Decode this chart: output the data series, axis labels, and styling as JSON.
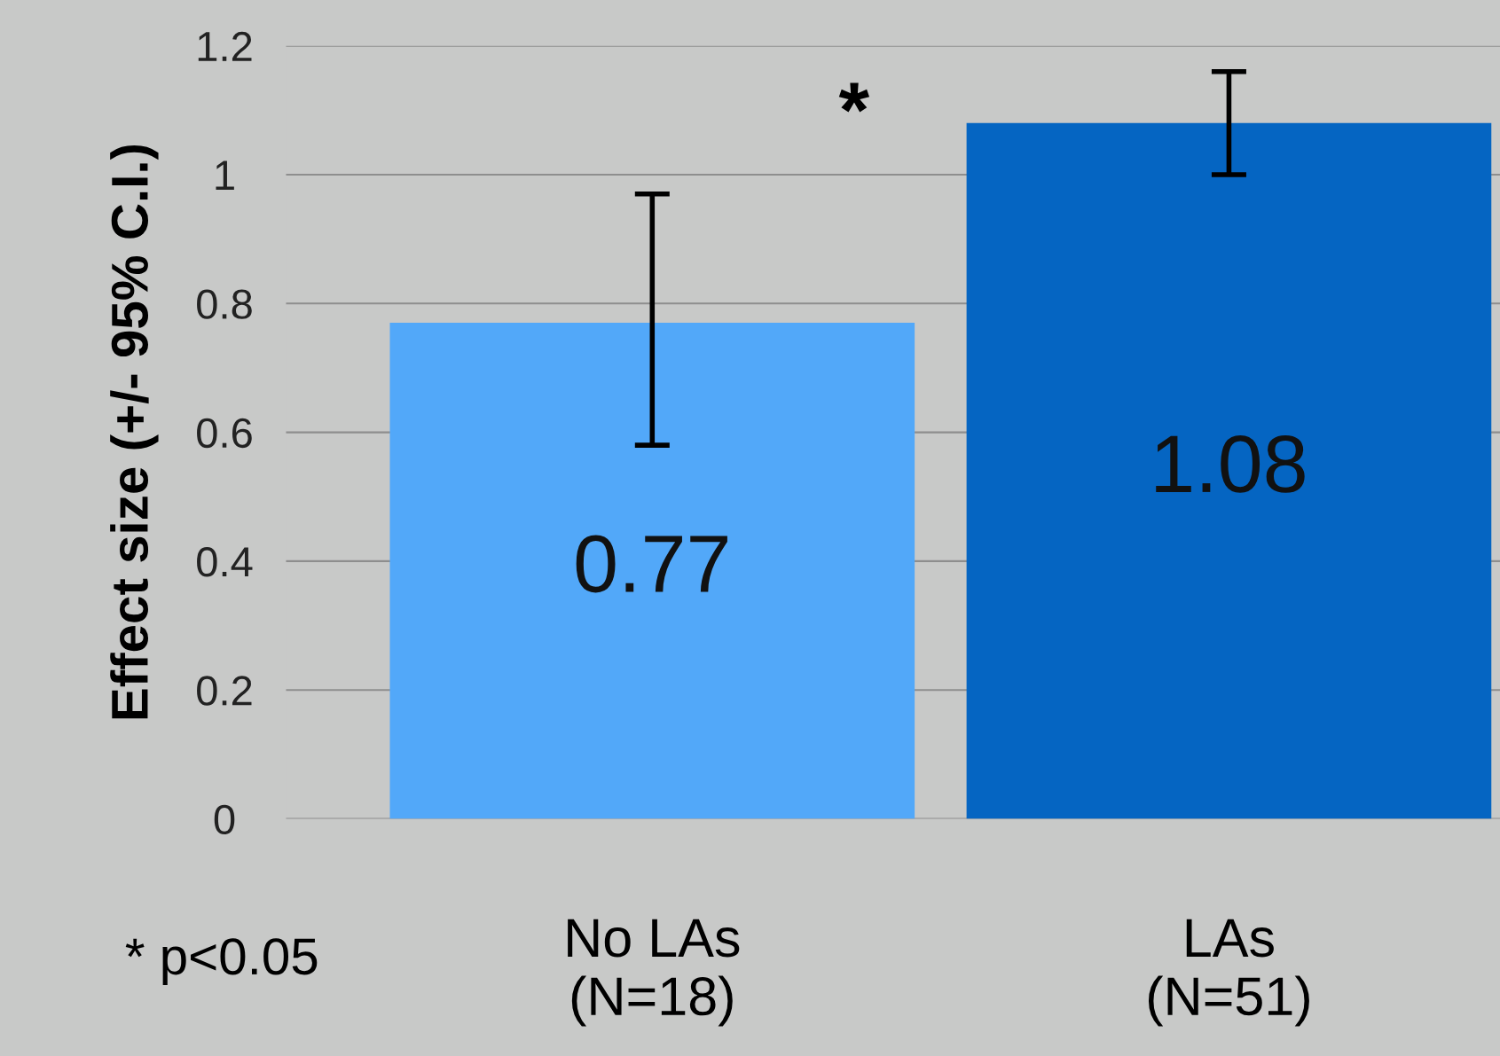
{
  "chart_data": {
    "type": "bar",
    "ylabel": "Effect size (+/- 95% C.I.)",
    "categories": [
      "No LAs\n(N=18)",
      "LAs\n(N=51)"
    ],
    "values": [
      0.77,
      1.08
    ],
    "colors": [
      "#52a8f9",
      "#0565c2"
    ],
    "errors": [
      [
        0.58,
        0.97
      ],
      [
        1.0,
        1.16
      ]
    ],
    "data_labels": true,
    "ylim": [
      0,
      1.2
    ],
    "yticks": [
      0,
      0.2,
      0.4,
      0.6,
      0.8,
      1,
      1.2
    ],
    "grid": "y",
    "annotations": [
      "*",
      "* p<0.05"
    ]
  }
}
